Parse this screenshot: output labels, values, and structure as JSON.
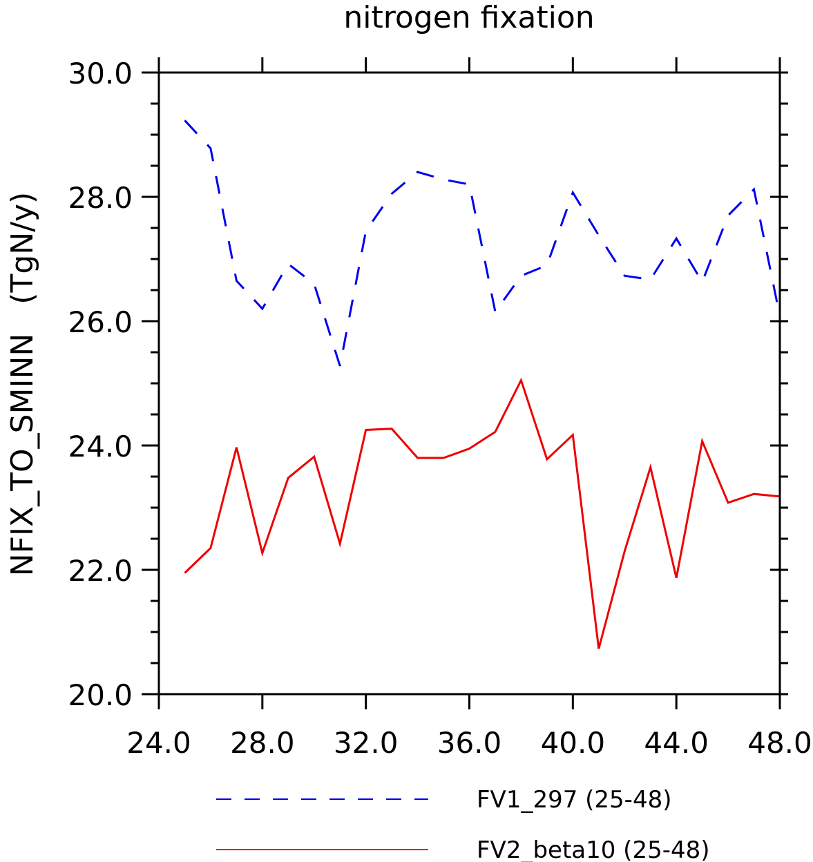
{
  "chart_data": {
    "type": "line",
    "title": "nitrogen fixation",
    "xlabel": "",
    "ylabel": "NFIX_TO_SMINN   (TgN/y)",
    "xlim": [
      24,
      48
    ],
    "ylim": [
      20,
      30
    ],
    "xticks": [
      24,
      28,
      32,
      36,
      40,
      44,
      48
    ],
    "xtick_labels": [
      "24.0",
      "28.0",
      "32.0",
      "36.0",
      "40.0",
      "44.0",
      "48.0"
    ],
    "yticks": [
      20,
      22,
      24,
      26,
      28,
      30
    ],
    "ytick_labels": [
      "20.0",
      "22.0",
      "24.0",
      "26.0",
      "28.0",
      "30.0"
    ],
    "x": [
      25,
      26,
      27,
      28,
      29,
      30,
      31,
      32,
      33,
      34,
      35,
      36,
      37,
      38,
      39,
      40,
      41,
      42,
      43,
      44,
      45,
      46,
      47,
      48
    ],
    "series": [
      {
        "name": "FV1_297 (25-48)",
        "color": "#0000ee",
        "dash": "dashed",
        "values": [
          29.23,
          28.78,
          26.65,
          26.2,
          26.92,
          26.6,
          25.28,
          27.45,
          28.05,
          28.4,
          28.28,
          28.2,
          26.15,
          26.73,
          26.9,
          28.07,
          27.38,
          26.73,
          26.67,
          27.33,
          26.63,
          27.7,
          28.12,
          26.08
        ]
      },
      {
        "name": "FV2_beta10 (25-48)",
        "color": "#ee0000",
        "dash": "solid",
        "values": [
          21.95,
          22.35,
          23.97,
          22.27,
          23.48,
          23.82,
          22.42,
          24.25,
          24.27,
          23.8,
          23.8,
          23.95,
          24.22,
          25.05,
          23.78,
          24.17,
          20.73,
          22.3,
          23.65,
          21.87,
          24.07,
          23.08,
          23.22,
          23.18
        ]
      }
    ],
    "legend_position": "bottom",
    "grid": false
  }
}
